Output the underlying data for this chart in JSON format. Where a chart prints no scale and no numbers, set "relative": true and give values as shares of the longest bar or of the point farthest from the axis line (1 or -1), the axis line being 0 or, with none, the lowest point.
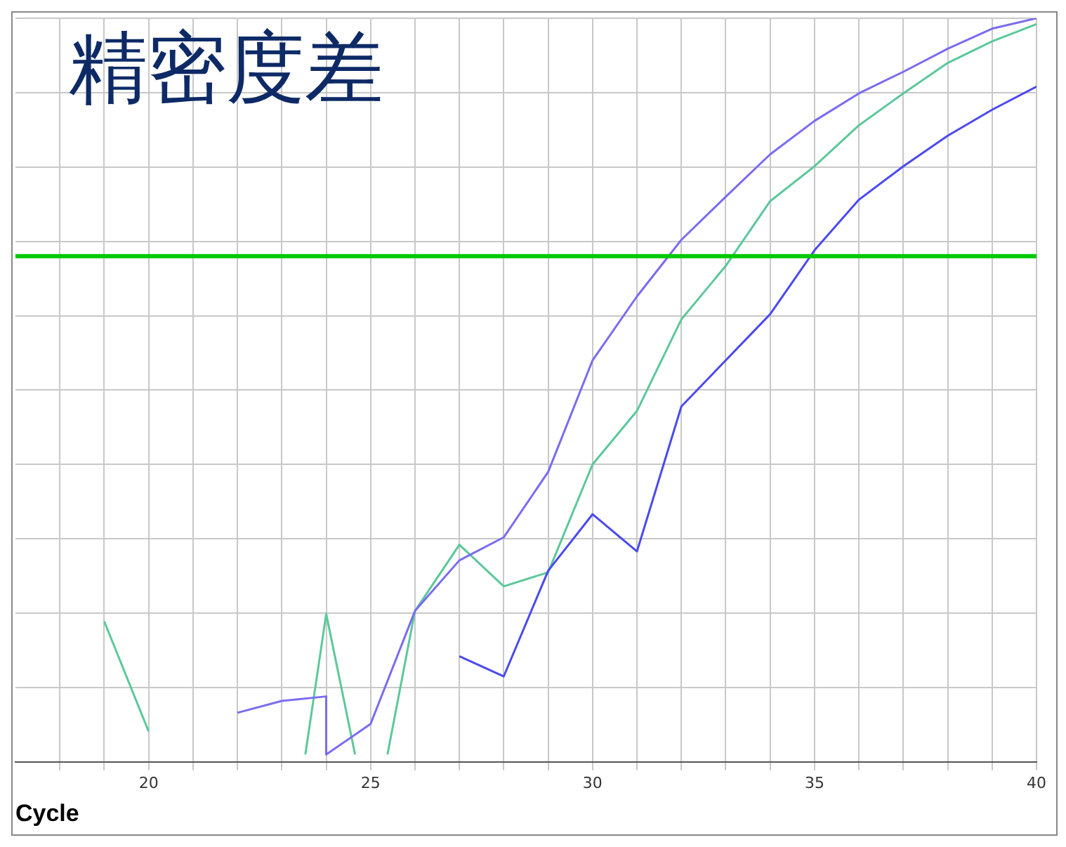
{
  "chart_data": {
    "type": "line",
    "title": "精密度差",
    "xlabel": "Cycle",
    "relative": true,
    "xlim": [
      17,
      40
    ],
    "xticks": [
      {
        "value": 18,
        "label": null
      },
      {
        "value": 19,
        "label": null
      },
      20,
      {
        "value": 21,
        "label": null
      },
      {
        "value": 22,
        "label": null
      },
      {
        "value": 23,
        "label": null
      },
      {
        "value": 24,
        "label": null
      },
      25,
      {
        "value": 26,
        "label": null
      },
      {
        "value": 27,
        "label": null
      },
      {
        "value": 28,
        "label": null
      },
      {
        "value": 29,
        "label": null
      },
      30,
      {
        "value": 31,
        "label": null
      },
      {
        "value": 32,
        "label": null
      },
      {
        "value": 33,
        "label": null
      },
      {
        "value": 34,
        "label": null
      },
      35,
      {
        "value": 36,
        "label": null
      },
      {
        "value": 37,
        "label": null
      },
      {
        "value": 38,
        "label": null
      },
      {
        "value": 39,
        "label": null
      },
      40
    ],
    "tick_labels": "x",
    "grid": true,
    "legend": false,
    "marker": "none",
    "line_style": "solid",
    "ref_lines": [
      {
        "axis": "y",
        "value": 0.68,
        "color": "#00c800"
      }
    ],
    "series": [
      {
        "color": "#7a6cf0",
        "x": [
          22,
          23,
          24,
          24,
          25,
          26,
          27,
          28,
          29,
          30,
          31,
          32,
          33,
          34,
          35,
          36,
          37,
          38,
          39,
          40
        ],
        "values": [
          0.066,
          0.082,
          0.088,
          0.01,
          0.051,
          0.203,
          0.271,
          0.302,
          0.39,
          0.54,
          0.626,
          0.702,
          0.76,
          0.817,
          0.862,
          0.899,
          0.928,
          0.959,
          0.986,
          1
        ]
      },
      {
        "color": "#4a4af0",
        "x": [
          27,
          28,
          29,
          30,
          31,
          32,
          33,
          34,
          35,
          36,
          37,
          38,
          39,
          40
        ],
        "values": [
          0.142,
          0.115,
          0.257,
          0.333,
          0.283,
          0.478,
          0.54,
          0.602,
          0.688,
          0.756,
          0.801,
          0.842,
          0.877,
          0.908
        ]
      },
      {
        "color": "#5cc89a",
        "x": [
          19,
          20,
          21,
          23.53,
          24,
          24.65,
          25,
          25.38,
          26,
          27,
          28,
          29,
          30,
          31,
          32,
          33,
          34,
          35,
          36,
          37,
          38,
          39,
          40
        ],
        "values": [
          0.189,
          0.041,
          null,
          0.01,
          0.199,
          0.01,
          null,
          0.01,
          0.203,
          0.292,
          0.236,
          0.255,
          0.4,
          0.472,
          0.595,
          0.667,
          0.754,
          0.801,
          0.856,
          0.899,
          0.94,
          0.969,
          0.992
        ]
      }
    ]
  }
}
